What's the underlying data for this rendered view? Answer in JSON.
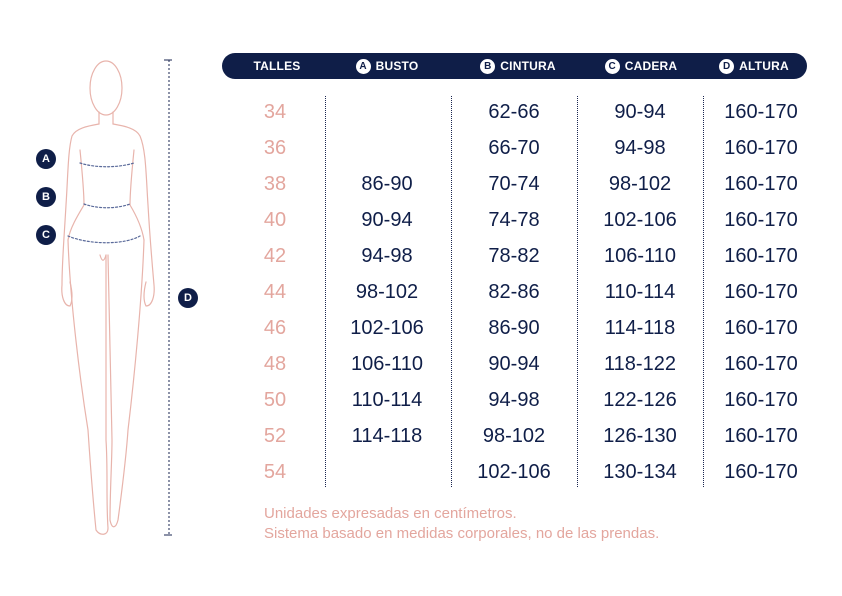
{
  "markers": [
    "A",
    "B",
    "C",
    "D"
  ],
  "headers": {
    "talles": "TALLES",
    "busto": {
      "badge": "A",
      "label": "BUSTO"
    },
    "cintura": {
      "badge": "B",
      "label": "CINTURA"
    },
    "cadera": {
      "badge": "C",
      "label": "CADERA"
    },
    "altura": {
      "badge": "D",
      "label": "ALTURA"
    }
  },
  "rows": [
    {
      "talle": "34",
      "busto": "",
      "cintura": "62-66",
      "cadera": "90-94",
      "altura": "160-170"
    },
    {
      "talle": "36",
      "busto": "",
      "cintura": "66-70",
      "cadera": "94-98",
      "altura": "160-170"
    },
    {
      "talle": "38",
      "busto": "86-90",
      "cintura": "70-74",
      "cadera": "98-102",
      "altura": "160-170"
    },
    {
      "talle": "40",
      "busto": "90-94",
      "cintura": "74-78",
      "cadera": "102-106",
      "altura": "160-170"
    },
    {
      "talle": "42",
      "busto": "94-98",
      "cintura": "78-82",
      "cadera": "106-110",
      "altura": "160-170"
    },
    {
      "talle": "44",
      "busto": "98-102",
      "cintura": "82-86",
      "cadera": "110-114",
      "altura": "160-170"
    },
    {
      "talle": "46",
      "busto": "102-106",
      "cintura": "86-90",
      "cadera": "114-118",
      "altura": "160-170"
    },
    {
      "talle": "48",
      "busto": "106-110",
      "cintura": "90-94",
      "cadera": "118-122",
      "altura": "160-170"
    },
    {
      "talle": "50",
      "busto": "110-114",
      "cintura": "94-98",
      "cadera": "122-126",
      "altura": "160-170"
    },
    {
      "talle": "52",
      "busto": "114-118",
      "cintura": "98-102",
      "cadera": "126-130",
      "altura": "160-170"
    },
    {
      "talle": "54",
      "busto": "",
      "cintura": "102-106",
      "cadera": "130-134",
      "altura": "160-170"
    }
  ],
  "notes": [
    "Unidades expresadas en centímetros.",
    "Sistema basado en medidas corporales, no de las prendas."
  ],
  "colors": {
    "navy": "#0f1e48",
    "pink": "#e3a69e",
    "outline": "#e8b4ac"
  }
}
